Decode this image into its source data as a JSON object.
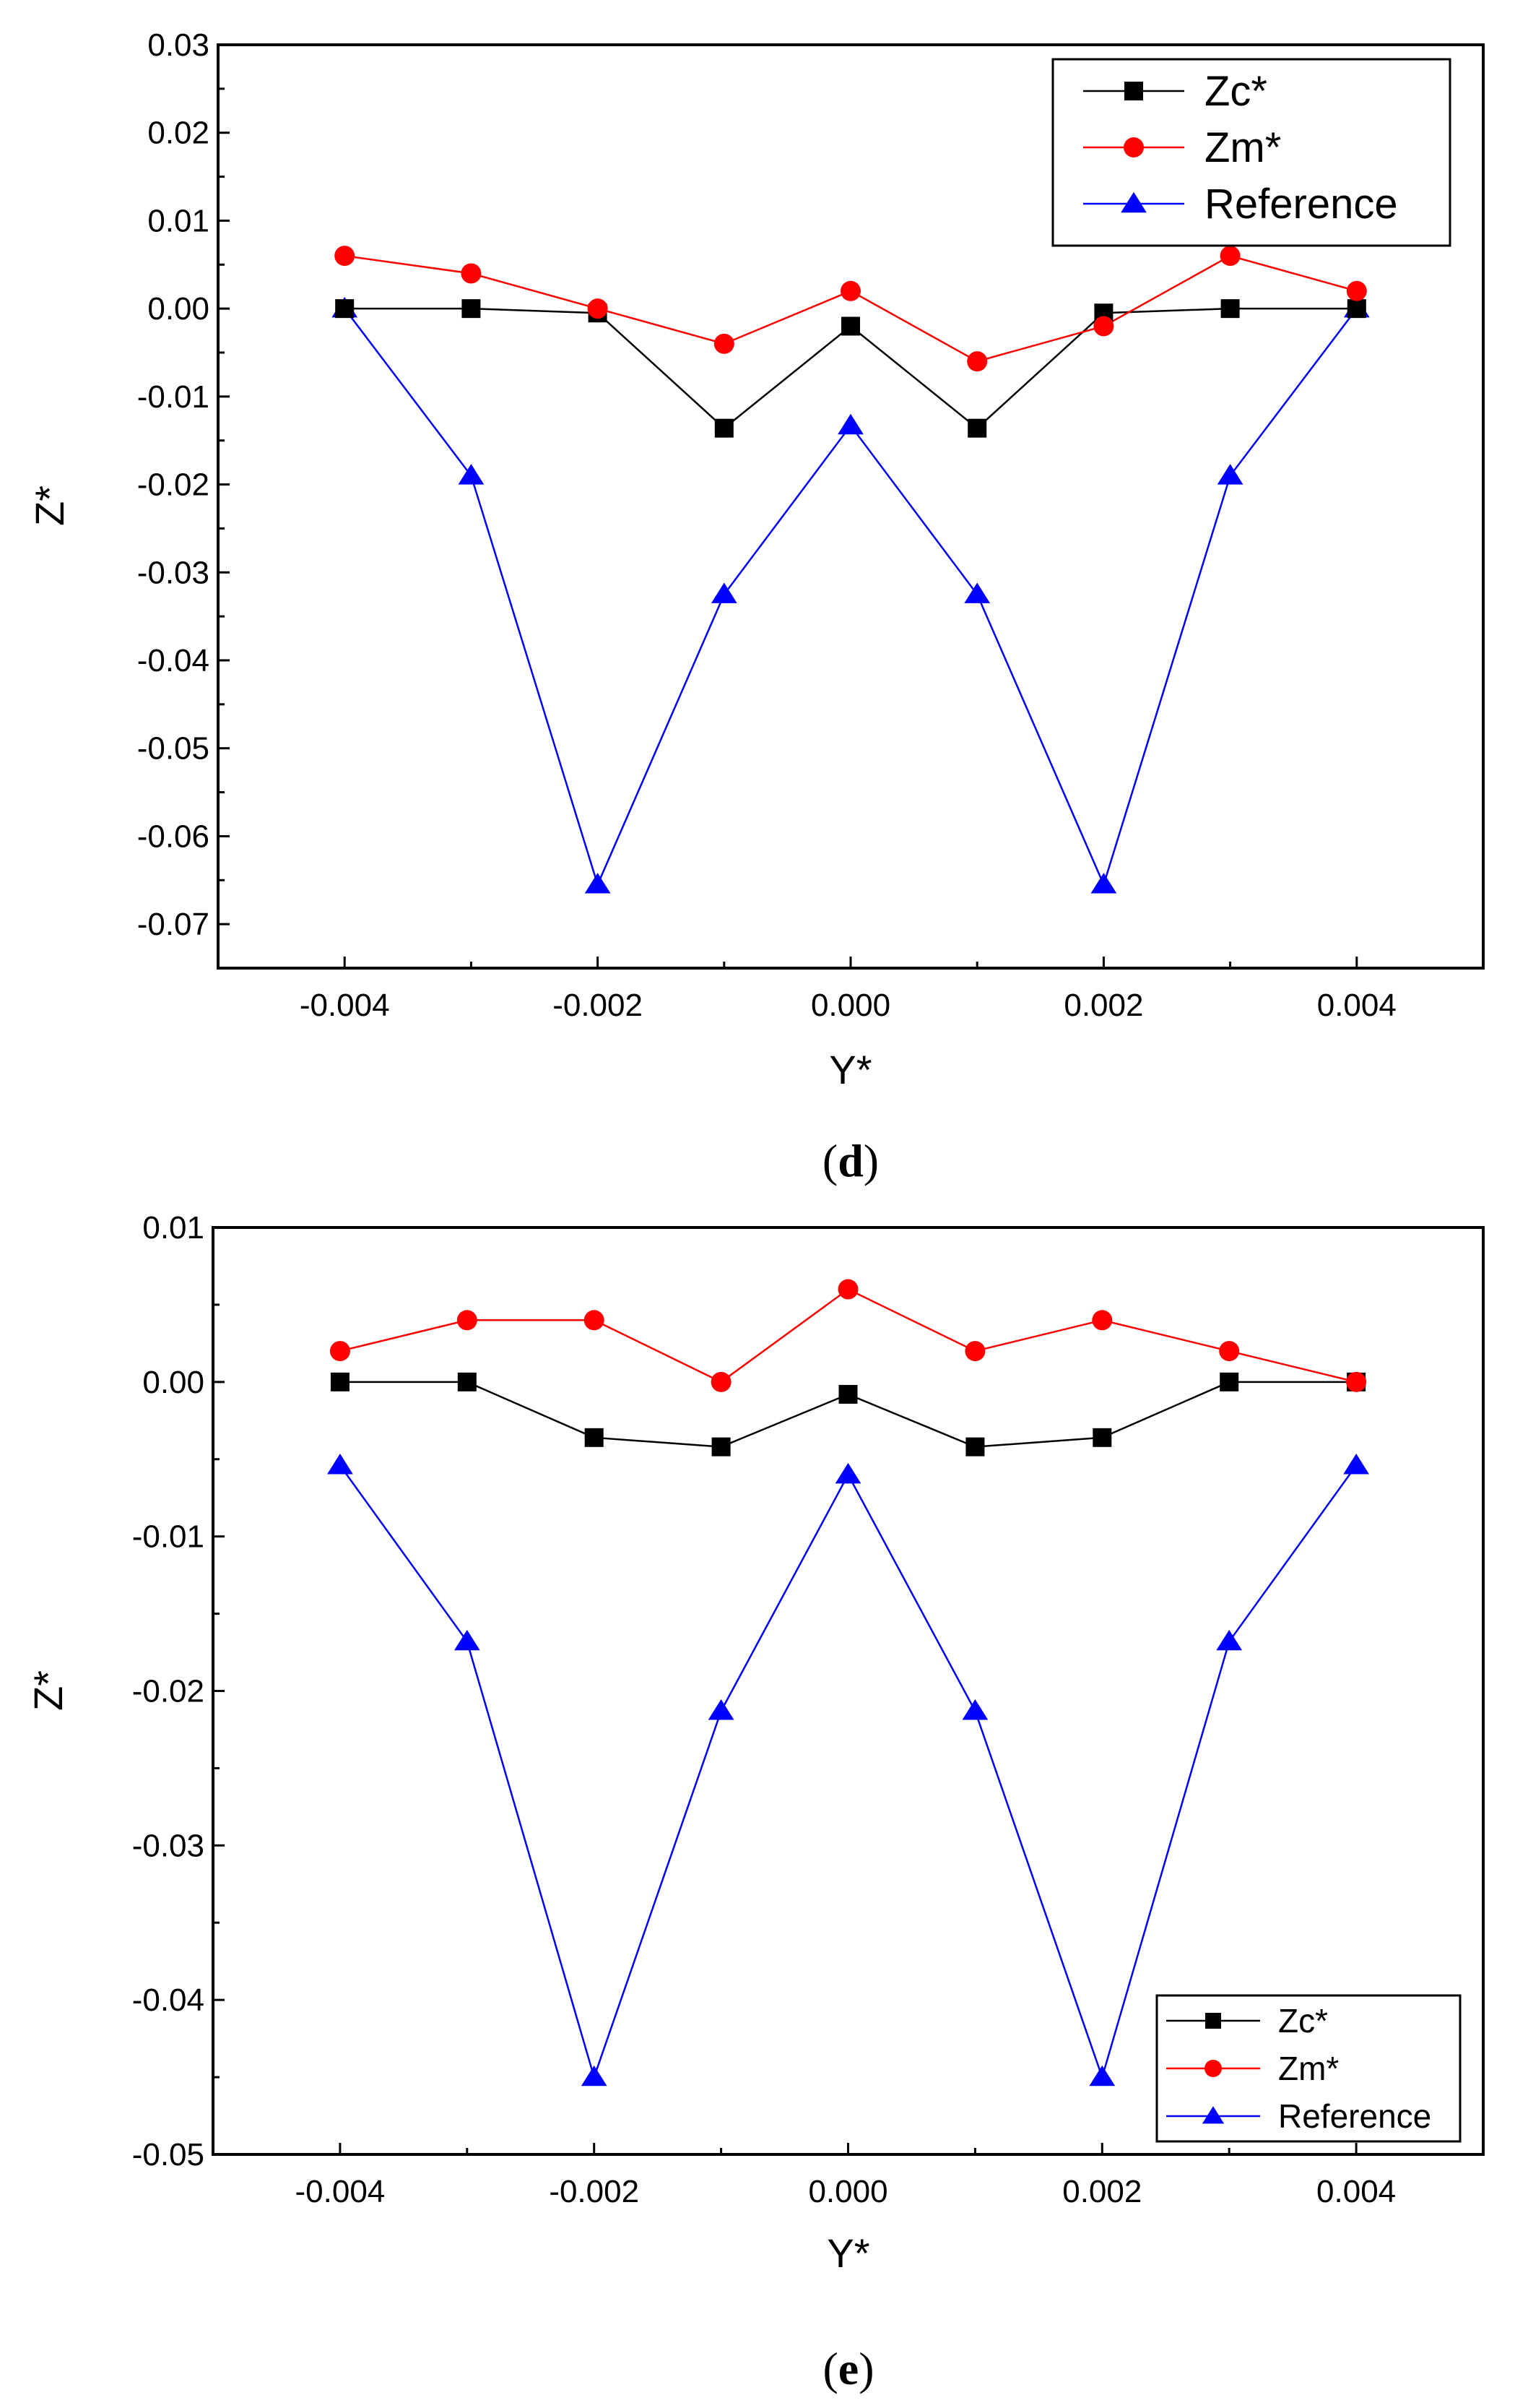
{
  "chart_data": [
    {
      "type": "line",
      "panel_label": "d",
      "xlabel": "Y*",
      "ylabel": "Z*",
      "xlim": [
        -0.005,
        0.005
      ],
      "ylim": [
        -0.075,
        0.03
      ],
      "xticks": [
        -0.004,
        -0.002,
        0.0,
        0.002,
        0.004
      ],
      "xtick_labels": [
        "-0.004",
        "-0.002",
        "0.000",
        "0.002",
        "0.004"
      ],
      "yticks": [
        0.03,
        0.02,
        0.01,
        0.0,
        -0.01,
        -0.02,
        -0.03,
        -0.04,
        -0.05,
        -0.06,
        -0.07
      ],
      "ytick_labels": [
        "0.03",
        "0.02",
        "0.01",
        "0.00",
        "-0.01",
        "-0.02",
        "-0.03",
        "-0.04",
        "-0.05",
        "-0.06",
        "-0.07"
      ],
      "legend_position": "top-right",
      "x": [
        -0.004,
        -0.003,
        -0.002,
        -0.001,
        0.0,
        0.001,
        0.002,
        0.003,
        0.004
      ],
      "series": [
        {
          "name": "Zc*",
          "color": "#000000",
          "marker": "square",
          "values": [
            0.0,
            0.0,
            -0.0005,
            -0.0136,
            -0.002,
            -0.0136,
            -0.0005,
            0.0,
            0.0
          ]
        },
        {
          "name": "Zm*",
          "color": "#ff0000",
          "marker": "circle",
          "values": [
            0.006,
            0.004,
            0.0,
            -0.004,
            0.002,
            -0.006,
            -0.002,
            0.006,
            0.002
          ]
        },
        {
          "name": "Reference",
          "color": "#0000ff",
          "marker": "triangle",
          "values": [
            0.0,
            -0.019,
            -0.0655,
            -0.0325,
            -0.0133,
            -0.0325,
            -0.0655,
            -0.019,
            0.0
          ]
        }
      ]
    },
    {
      "type": "line",
      "panel_label": "e",
      "xlabel": "Y*",
      "ylabel": "Z*",
      "xlim": [
        -0.005,
        0.005
      ],
      "ylim": [
        -0.05,
        0.01
      ],
      "xticks": [
        -0.004,
        -0.002,
        0.0,
        0.002,
        0.004
      ],
      "xtick_labels": [
        "-0.004",
        "-0.002",
        "0.000",
        "0.002",
        "0.004"
      ],
      "yticks": [
        0.01,
        0.0,
        -0.01,
        -0.02,
        -0.03,
        -0.04,
        -0.05
      ],
      "ytick_labels": [
        "0.01",
        "0.00",
        "-0.01",
        "-0.02",
        "-0.03",
        "-0.04",
        "-0.05"
      ],
      "legend_position": "bottom-right",
      "x": [
        -0.004,
        -0.003,
        -0.002,
        -0.001,
        0.0,
        0.001,
        0.002,
        0.003,
        0.004
      ],
      "series": [
        {
          "name": "Zc*",
          "color": "#000000",
          "marker": "square",
          "values": [
            0.0,
            0.0,
            -0.0036,
            -0.0042,
            -0.0008,
            -0.0042,
            -0.0036,
            0.0,
            0.0
          ]
        },
        {
          "name": "Zm*",
          "color": "#ff0000",
          "marker": "circle",
          "values": [
            0.002,
            0.004,
            0.004,
            0.0,
            0.006,
            0.002,
            0.004,
            0.002,
            0.0
          ]
        },
        {
          "name": "Reference",
          "color": "#0000ff",
          "marker": "triangle",
          "values": [
            -0.0054,
            -0.0168,
            -0.045,
            -0.0213,
            -0.006,
            -0.0213,
            -0.045,
            -0.0168,
            -0.0054
          ]
        }
      ]
    }
  ]
}
